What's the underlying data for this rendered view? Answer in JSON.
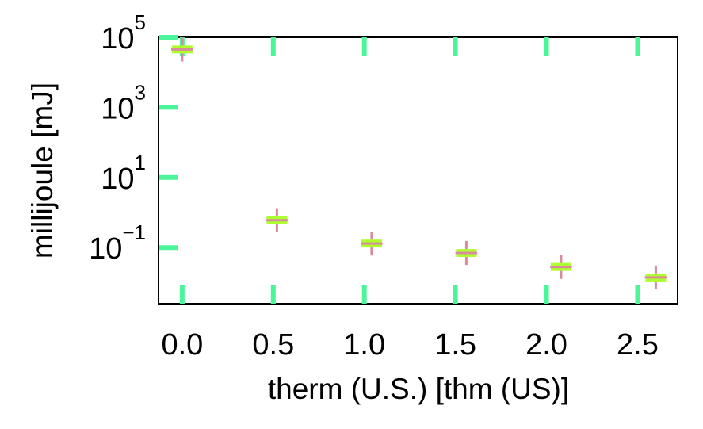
{
  "chart_data": {
    "type": "scatter",
    "title": "",
    "xlabel": "therm (U.S.) [thm (US)]",
    "ylabel": "millijoule [mJ]",
    "xlim": [
      -0.13,
      2.72
    ],
    "ylim": [
      0.0025,
      100000
    ],
    "yscale": "log",
    "grid": false,
    "x_ticks": [
      "0.0",
      "0.5",
      "1.0",
      "1.5",
      "2.0",
      "2.5"
    ],
    "x_tick_values": [
      0.0,
      0.5,
      1.0,
      1.5,
      2.0,
      2.5
    ],
    "y_ticks": [
      {
        "base": "10",
        "exp": "5"
      },
      {
        "base": "10",
        "exp": "3"
      },
      {
        "base": "10",
        "exp": "1"
      },
      {
        "base": "10",
        "exp": "−1"
      }
    ],
    "y_tick_values": [
      100000,
      1000,
      10,
      0.1
    ],
    "series": [
      {
        "x": [
          0.0,
          0.52,
          1.04,
          1.56,
          2.08,
          2.6
        ],
        "y": [
          45000,
          0.6,
          0.13,
          0.07,
          0.028,
          0.014
        ],
        "xerr": 0.06,
        "yerr_factor": 2.2,
        "marker_color": "#adff2f",
        "errorbar_color": "#d98c9a"
      }
    ],
    "tick_color": "#4cf59a"
  }
}
